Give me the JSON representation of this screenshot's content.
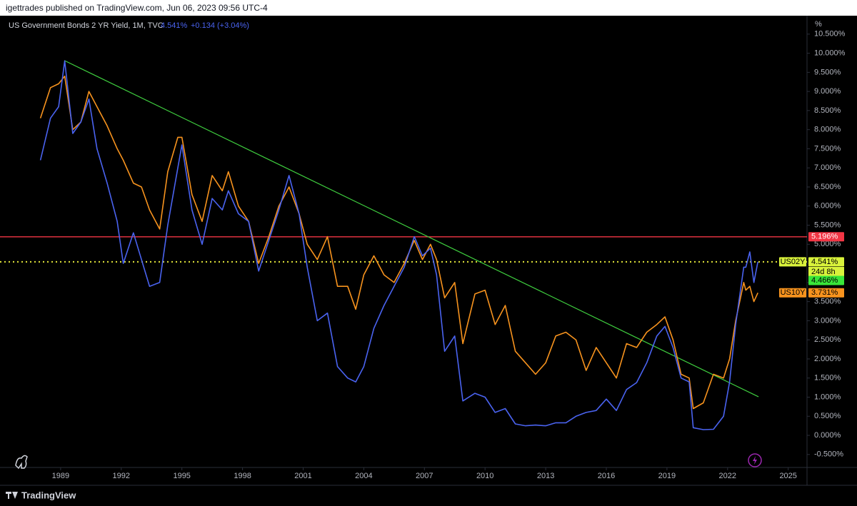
{
  "header": {
    "publisher": "igettrades published on TradingView.com, Jun 06, 2023 09:56 UTC-4",
    "footer": "TradingView"
  },
  "chart_data": {
    "type": "line",
    "title": "US Government Bonds 2 YR Yield, 1M, TVC",
    "legend_value": "4.541%",
    "legend_change": "+0.134 (+3.04%)",
    "y_unit": "%",
    "x": [
      1988.0,
      1988.5,
      1988.9,
      1989.2,
      1989.6,
      1990.0,
      1990.4,
      1990.8,
      1991.3,
      1991.8,
      1992.1,
      1992.6,
      1993.0,
      1993.4,
      1993.9,
      1994.3,
      1994.8,
      1995.0,
      1995.5,
      1996.0,
      1996.5,
      1997.0,
      1997.3,
      1997.8,
      1998.3,
      1998.8,
      1999.3,
      1999.8,
      2000.3,
      2000.8,
      2001.2,
      2001.7,
      2002.2,
      2002.7,
      2003.2,
      2003.6,
      2004.0,
      2004.5,
      2005.0,
      2005.5,
      2006.0,
      2006.5,
      2006.9,
      2007.3,
      2007.6,
      2008.0,
      2008.5,
      2008.9,
      2009.5,
      2010.0,
      2010.5,
      2011.0,
      2011.5,
      2012.0,
      2012.5,
      2013.0,
      2013.5,
      2014.0,
      2014.5,
      2015.0,
      2015.5,
      2016.0,
      2016.5,
      2017.0,
      2017.5,
      2018.0,
      2018.5,
      2018.9,
      2019.3,
      2019.7,
      2020.1,
      2020.3,
      2020.8,
      2021.3,
      2021.8,
      2022.1,
      2022.4,
      2022.8,
      2022.9,
      2023.1,
      2023.3,
      2023.5
    ],
    "series": [
      {
        "name": "US02Y",
        "color": "#4a63f0",
        "values": [
          7.2,
          8.3,
          8.6,
          9.8,
          7.9,
          8.2,
          8.8,
          7.5,
          6.6,
          5.6,
          4.5,
          5.3,
          4.6,
          3.9,
          4.0,
          5.5,
          7.0,
          7.6,
          5.9,
          5.0,
          6.2,
          5.9,
          6.4,
          5.8,
          5.6,
          4.3,
          5.1,
          5.9,
          6.8,
          5.8,
          4.4,
          3.0,
          3.2,
          1.8,
          1.5,
          1.4,
          1.8,
          2.8,
          3.4,
          3.9,
          4.4,
          5.2,
          4.7,
          4.9,
          4.2,
          2.2,
          2.6,
          0.9,
          1.1,
          1.0,
          0.6,
          0.7,
          0.3,
          0.25,
          0.27,
          0.25,
          0.33,
          0.33,
          0.5,
          0.6,
          0.65,
          0.95,
          0.65,
          1.2,
          1.38,
          1.9,
          2.6,
          2.85,
          2.3,
          1.5,
          1.4,
          0.2,
          0.15,
          0.16,
          0.5,
          1.4,
          2.9,
          4.4,
          4.4,
          4.8,
          4.0,
          4.541
        ]
      },
      {
        "name": "US10Y",
        "color": "#f7931e",
        "values": [
          8.3,
          9.1,
          9.2,
          9.4,
          8.0,
          8.2,
          9.0,
          8.6,
          8.1,
          7.5,
          7.2,
          6.6,
          6.5,
          5.9,
          5.4,
          6.9,
          7.8,
          7.8,
          6.3,
          5.6,
          6.8,
          6.4,
          6.9,
          6.0,
          5.6,
          4.5,
          5.2,
          6.0,
          6.5,
          5.8,
          5.0,
          4.6,
          5.2,
          3.9,
          3.9,
          3.3,
          4.2,
          4.7,
          4.2,
          4.0,
          4.5,
          5.1,
          4.6,
          5.0,
          4.6,
          3.6,
          4.0,
          2.4,
          3.7,
          3.8,
          2.9,
          3.4,
          2.2,
          1.9,
          1.6,
          1.9,
          2.6,
          2.7,
          2.5,
          1.7,
          2.3,
          1.9,
          1.5,
          2.4,
          2.3,
          2.7,
          2.9,
          3.1,
          2.5,
          1.6,
          1.5,
          0.7,
          0.85,
          1.6,
          1.5,
          2.0,
          3.0,
          4.0,
          3.8,
          3.9,
          3.5,
          3.731
        ]
      }
    ],
    "hlines": [
      {
        "value": 5.196,
        "color": "#f23645",
        "style": "solid"
      },
      {
        "value": 4.541,
        "color": "#e4e83a",
        "style": "dotted"
      }
    ],
    "trendline": {
      "color": "#3fcf3f",
      "x": [
        1989.18,
        2023.53
      ],
      "values": [
        9.81,
        1.01
      ]
    },
    "price_labels": [
      {
        "name": "US02Y",
        "value": 4.541,
        "label": "4.541%",
        "color": "#d9f23b",
        "text_color": "#000000"
      },
      {
        "value": 4.466,
        "label": "4.466%",
        "note": "24d 8h",
        "color": "#39e639",
        "text_color": "#000000"
      },
      {
        "name": "US10Y",
        "value": 3.731,
        "label": "3.731%",
        "color": "#f7931e",
        "text_color": "#000000"
      },
      {
        "value": 5.196,
        "label": "5.196%",
        "color": "#f23645",
        "text_color": "#ffffff"
      }
    ],
    "xlim": [
      1986.0,
      2025.93
    ],
    "xticks": [
      1989,
      1992,
      1995,
      1998,
      2001,
      2004,
      2007,
      2010,
      2013,
      2016,
      2019,
      2022,
      2025
    ],
    "ylim": [
      -0.84,
      10.87
    ],
    "yticks": [
      {
        "value": 10.5,
        "label": "10.500%"
      },
      {
        "value": 10,
        "label": "10.000%"
      },
      {
        "value": 9.5,
        "label": "9.500%"
      },
      {
        "value": 9,
        "label": "9.000%"
      },
      {
        "value": 8.5,
        "label": "8.500%"
      },
      {
        "value": 8,
        "label": "8.000%"
      },
      {
        "value": 7.5,
        "label": "7.500%"
      },
      {
        "value": 7,
        "label": "7.000%"
      },
      {
        "value": 6.5,
        "label": "6.500%"
      },
      {
        "value": 6,
        "label": "6.000%"
      },
      {
        "value": 5.5,
        "label": "5.500%"
      },
      {
        "value": 5,
        "label": "5.000%"
      },
      {
        "value": 4.5,
        "label": "4.500%"
      },
      {
        "value": 4,
        "label": "4.000%"
      },
      {
        "value": 3.5,
        "label": "3.500%"
      },
      {
        "value": 3,
        "label": "3.000%"
      },
      {
        "value": 2.5,
        "label": "2.500%"
      },
      {
        "value": 2,
        "label": "2.000%"
      },
      {
        "value": 1.5,
        "label": "1.500%"
      },
      {
        "value": 1,
        "label": "1.000%"
      },
      {
        "value": 0.5,
        "label": "0.500%"
      },
      {
        "value": 0,
        "label": "0.000%"
      },
      {
        "value": -0.5,
        "label": "-0.500%"
      }
    ],
    "grid": false
  }
}
